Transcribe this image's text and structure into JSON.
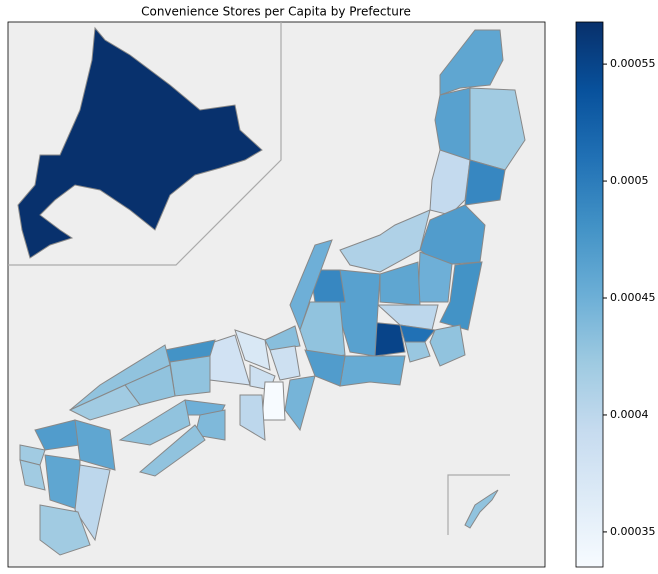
{
  "chart_data": {
    "type": "choropleth",
    "title": "Convenience Stores per Capita by Prefecture",
    "cmap": "Blues",
    "background": "#eeeeee",
    "edgecolor": "#888888",
    "clim": [
      0.000335,
      0.000568
    ],
    "cticks": [
      0.00035,
      0.0004,
      0.00045,
      0.0005,
      0.00055
    ],
    "values": [
      0.000567,
      0.00046,
      0.000465,
      0.00042,
      0.000395,
      0.00049,
      0.00047,
      0.00041,
      0.00045,
      0.00048,
      0.00046,
      0.0004,
      0.00055,
      0.00051,
      0.00043,
      0.000425,
      0.000465,
      0.000455,
      0.00049,
      0.00045,
      0.00043,
      0.00047,
      0.000435,
      0.000385,
      0.000445,
      0.00037,
      0.000385,
      0.000335,
      0.0004,
      0.00038,
      0.00048,
      0.00043,
      0.00043,
      0.00043,
      0.00042,
      0.00045,
      0.00044,
      0.00043,
      0.00043,
      0.00047,
      0.00046,
      0.00042,
      0.00042,
      0.00046,
      0.0004,
      0.00042,
      0.00043
    ]
  }
}
